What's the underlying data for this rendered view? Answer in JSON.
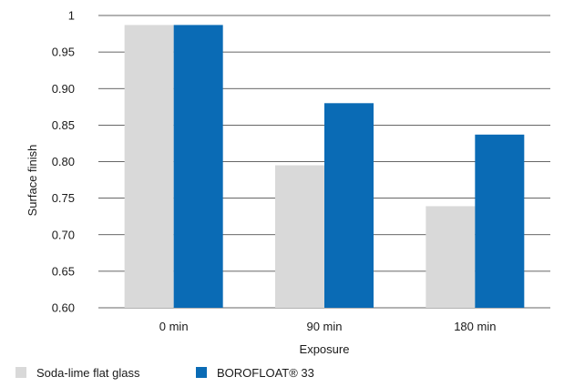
{
  "chart_data": {
    "type": "bar",
    "title": "",
    "xlabel": "Exposure",
    "ylabel": "Surface finish",
    "categories": [
      "0 min",
      "90 min",
      "180 min"
    ],
    "ylim": [
      0.6,
      1.0
    ],
    "yticks": [
      0.6,
      0.65,
      0.7,
      0.75,
      0.8,
      0.85,
      0.9,
      0.95,
      1.0
    ],
    "ytick_labels": [
      "0.60",
      "0.65",
      "0.70",
      "0.75",
      "0.80",
      "0.85",
      "0.90",
      "0.95",
      "1"
    ],
    "grid": "horizontal",
    "legend_position": "bottom-left",
    "series": [
      {
        "name": "Soda-lime flat glass",
        "color": "#d9d9d9",
        "values": [
          0.987,
          0.795,
          0.739
        ]
      },
      {
        "name": "BOROFLOAT® 33",
        "color": "#0a6bb5",
        "values": [
          0.987,
          0.88,
          0.837
        ]
      }
    ]
  }
}
